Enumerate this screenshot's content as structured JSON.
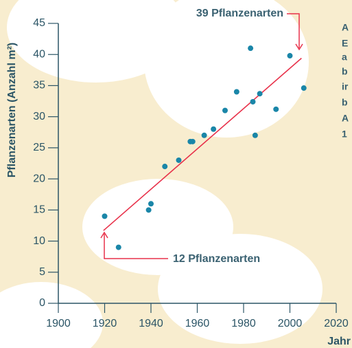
{
  "chart_data": {
    "type": "scatter",
    "ylabel": "Pflanzenarten (Anzahl m²)",
    "xlabel": "Jahr",
    "x": [
      1920,
      1926,
      1939,
      1940,
      1946,
      1952,
      1957,
      1958,
      1963,
      1967,
      1972,
      1977,
      1983,
      1984,
      1985,
      1987,
      1994,
      2000,
      2006
    ],
    "values": [
      14,
      9,
      15,
      16,
      22,
      23,
      26,
      26,
      27,
      28,
      31,
      34,
      41,
      32.4,
      27,
      33.7,
      31.2,
      39.8,
      34.6
    ],
    "color": "#1a86a8",
    "trend": {
      "x": [
        1919.5,
        2005
      ],
      "y": [
        11.7,
        39.4
      ],
      "color": "#e8314a"
    },
    "annotations": [
      "39 Pflanzenarten",
      "12 Pflanzenarten"
    ],
    "side_text": [
      "A",
      "E",
      "a",
      "b",
      "ir",
      "b",
      "A",
      "1"
    ],
    "xlim": [
      1900,
      2020
    ],
    "xticks": [
      1900,
      1920,
      1940,
      1960,
      1980,
      2000,
      2020
    ],
    "ylim": [
      0,
      45
    ],
    "yticks": [
      0,
      5,
      10,
      15,
      20,
      25,
      30,
      35,
      40,
      45
    ]
  }
}
